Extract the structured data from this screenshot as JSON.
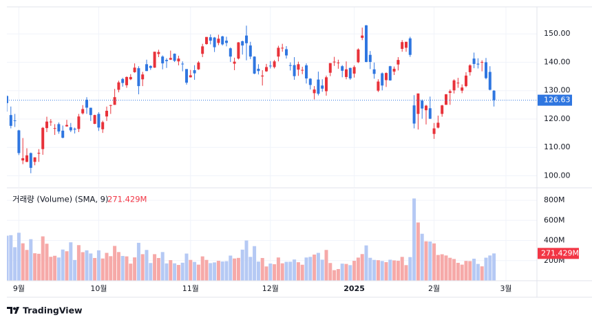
{
  "branding": "TradingView",
  "chart_data": [
    {
      "type": "candlestick",
      "xticks": [
        {
          "value": 3,
          "label": "9월"
        },
        {
          "value": 23,
          "label": "10월"
        },
        {
          "value": 46,
          "label": "11월"
        },
        {
          "value": 66,
          "label": "12월"
        },
        {
          "value": 87,
          "label": "2025"
        },
        {
          "value": 107,
          "label": "2월"
        },
        {
          "value": 125,
          "label": "3월"
        }
      ],
      "ylim": [
        96,
        159.5
      ],
      "yticks": [
        {
          "value": 100,
          "label": "100.00"
        },
        {
          "value": 110,
          "label": "110.00"
        },
        {
          "value": 120,
          "label": "120.00"
        },
        {
          "value": 130,
          "label": "130.00"
        },
        {
          "value": 140,
          "label": "140.00"
        },
        {
          "value": 150,
          "label": "150.00"
        }
      ],
      "up_color": "#e8323a",
      "down_color": "#2f76e0",
      "grid": true,
      "open": [
        128.1,
        121.4,
        119.5,
        116.0,
        105.4,
        104.9,
        108.0,
        104.9,
        107.8,
        109.4,
        116.8,
        119.1,
        116.8,
        118.2,
        115.9,
        117.4,
        117.1,
        116.6,
        116.5,
        122.0,
        126.8,
        123.97,
        118.3,
        121.8,
        116.4,
        120.9,
        124.9,
        124.99,
        130.3,
        134.1,
        131.9,
        134.0,
        136.5,
        137.9,
        133.98,
        139.3,
        138.7,
        138.1,
        142.9,
        142.0,
        140.8,
        140.9,
        143.0,
        140.3,
        139.5,
        137.6,
        134.7,
        137.2,
        137.5,
        142.96,
        146.4,
        148.8,
        148.7,
        146.8,
        149.1,
        147.6,
        144.9,
        139.5,
        141.3,
        147.4,
        149.4,
        145.9,
        141.99,
        137.7,
        135.0,
        136.8,
        138.8,
        138.3,
        142.0,
        145.1,
        144.6,
        138.97,
        139.0,
        137.4,
        137.1,
        138.9,
        134.2,
        129.1,
        133.9,
        131.8,
        129.8,
        136.3,
        140.0,
        139.7,
        138.6,
        134.8,
        138.0,
        136.0,
        140.0,
        148.6,
        153.0,
        142.6,
        137.5,
        129.99,
        136.1,
        133.7,
        138.6,
        136.7,
        139.2,
        144.7,
        145.1,
        148.4,
        124.8,
        121.8,
        126.5,
        123.1,
        123.8,
        114.75,
        116.96,
        121.8,
        125.0,
        129.2,
        130.1,
        132.6,
        130.0,
        131.6,
        136.5,
        141.3,
        139.5,
        140.0,
        140.0,
        136.6,
        129.98
      ],
      "high": [
        128.3,
        124.4,
        121.8,
        116.2,
        113.3,
        109.7,
        108.2,
        106.5,
        109.4,
        117.2,
        120.8,
        119.96,
        118.2,
        118.8,
        117.7,
        119.7,
        118.6,
        116.99,
        121.8,
        124.9,
        127.7,
        124.0,
        121.5,
        122.4,
        119.4,
        124.4,
        125.0,
        130.6,
        133.5,
        134.5,
        135.0,
        135.8,
        139.6,
        138.6,
        136.6,
        140.9,
        138.9,
        143.7,
        144.4,
        142.4,
        141.4,
        144.1,
        143.1,
        142.3,
        140.3,
        137.6,
        137.3,
        138.96,
        140.4,
        146.5,
        148.9,
        149.8,
        148.9,
        149.7,
        149.3,
        149.0,
        145.2,
        141.6,
        147.1,
        147.6,
        152.9,
        147.2,
        142.1,
        139.3,
        137.2,
        139.4,
        140.4,
        140.8,
        145.8,
        146.5,
        145.7,
        139.95,
        141.8,
        140.2,
        138.4,
        139.6,
        134.4,
        131.6,
        136.7,
        134.0,
        135.3,
        139.7,
        141.9,
        140.9,
        139.0,
        140.3,
        138.1,
        138.9,
        144.9,
        152.2,
        153.1,
        143.95,
        139.9,
        134.0,
        136.4,
        136.4,
        138.75,
        138.5,
        141.8,
        147.8,
        147.2,
        148.97,
        128.4,
        129.0,
        126.9,
        125.0,
        127.9,
        118.6,
        121.2,
        125.0,
        128.8,
        130.4,
        134.0,
        134.5,
        132.2,
        136.5,
        139.3,
        143.4,
        141.4,
        140.7,
        141.5,
        138.6,
        130.2
      ],
      "low": [
        122.6,
        116.7,
        117.2,
        107.3,
        104.1,
        104.8,
        100.9,
        103.7,
        104.9,
        107.4,
        115.4,
        117.6,
        114.4,
        114.8,
        113.2,
        117.3,
        115.4,
        114.9,
        115.4,
        121.6,
        121.8,
        119.3,
        118.2,
        115.8,
        115.1,
        119.3,
        121.8,
        124.95,
        129.4,
        131.4,
        131.0,
        133.7,
        136.3,
        128.7,
        131.6,
        136.9,
        137.3,
        138.0,
        141.8,
        137.5,
        138.0,
        140.8,
        140.1,
        138.9,
        136.8,
        132.1,
        134.6,
        133.8,
        137.3,
        141.8,
        146.2,
        146.3,
        143.6,
        146.0,
        145.9,
        145.6,
        140.1,
        137.2,
        140.99,
        142.7,
        140.7,
        141.1,
        135.8,
        135.7,
        131.8,
        136.6,
        137.8,
        137.8,
        140.3,
        143.7,
        141.3,
        137.1,
        133.8,
        135.2,
        135.8,
        132.5,
        130.4,
        126.9,
        128.3,
        129.6,
        128.2,
        135.1,
        138.7,
        137.7,
        134.7,
        134.0,
        133.8,
        134.6,
        139.7,
        147.8,
        140.0,
        137.6,
        134.2,
        129.5,
        130.1,
        131.3,
        133.5,
        135.5,
        137.1,
        143.7,
        143.7,
        141.9,
        116.7,
        116.3,
        120.1,
        118.1,
        120.0,
        113.0,
        116.7,
        120.8,
        125.0,
        125.0,
        129.0,
        131.0,
        129.1,
        131.2,
        135.3,
        137.9,
        137.8,
        136.8,
        134.0,
        130.1,
        124.4
      ],
      "close": [
        125.6,
        117.6,
        119.4,
        108.0,
        106.2,
        107.2,
        102.8,
        106.5,
        108.1,
        116.9,
        119.1,
        119.1,
        116.8,
        115.6,
        113.4,
        117.9,
        116.0,
        116.3,
        120.9,
        123.5,
        124.0,
        121.4,
        121.4,
        117.0,
        118.9,
        122.9,
        124.9,
        127.7,
        132.9,
        132.7,
        134.8,
        134.8,
        138.1,
        131.6,
        135.7,
        136.9,
        138.0,
        143.7,
        143.6,
        139.6,
        140.4,
        141.5,
        140.5,
        141.3,
        139.3,
        132.8,
        135.4,
        136.1,
        139.9,
        145.6,
        148.9,
        147.6,
        145.3,
        148.3,
        146.3,
        146.8,
        142.0,
        140.2,
        147.0,
        145.9,
        146.7,
        142.0,
        136.0,
        136.9,
        135.3,
        138.3,
        138.6,
        140.3,
        145.1,
        145.1,
        142.4,
        138.8,
        135.1,
        139.3,
        137.3,
        134.3,
        132.0,
        130.4,
        128.9,
        130.7,
        134.7,
        139.7,
        140.2,
        139.9,
        137.0,
        137.5,
        134.3,
        138.3,
        144.5,
        149.4,
        140.1,
        140.1,
        135.9,
        133.2,
        131.8,
        136.2,
        133.6,
        137.7,
        140.8,
        147.1,
        147.2,
        142.6,
        118.4,
        129.0,
        123.7,
        124.7,
        120.1,
        116.7,
        118.7,
        124.8,
        128.7,
        129.8,
        133.6,
        132.8,
        131.1,
        135.3,
        138.9,
        139.4,
        139.2,
        140.1,
        134.4,
        130.3,
        126.63
      ]
    },
    {
      "type": "bar",
      "title": "거래량 (Volume) (SMA, 9)",
      "ylim": [
        0,
        910
      ],
      "yticks": [
        {
          "value": 200,
          "label": "200M"
        },
        {
          "value": 400,
          "label": "400M"
        },
        {
          "value": 600,
          "label": "600M"
        },
        {
          "value": 800,
          "label": "800M"
        }
      ],
      "up_color": "#f6a9a8",
      "down_color": "#b5c9f4",
      "label_color": "#f23645",
      "values": [
        448,
        453,
        333,
        477,
        372,
        306,
        413,
        273,
        268,
        441,
        368,
        238,
        248,
        231,
        310,
        293,
        382,
        206,
        354,
        284,
        302,
        271,
        226,
        302,
        221,
        277,
        244,
        346,
        285,
        246,
        242,
        170,
        232,
        377,
        264,
        306,
        176,
        264,
        226,
        285,
        172,
        205,
        173,
        157,
        179,
        270,
        207,
        187,
        160,
        242,
        207,
        175,
        182,
        198,
        191,
        194,
        250,
        221,
        227,
        309,
        400,
        237,
        344,
        190,
        226,
        142,
        171,
        164,
        231,
        173,
        188,
        189,
        211,
        184,
        159,
        231,
        237,
        260,
        277,
        209,
        306,
        176,
        105,
        116,
        170,
        167,
        155,
        198,
        230,
        265,
        351,
        228,
        207,
        204,
        196,
        185,
        209,
        202,
        198,
        237,
        155,
        235,
        818,
        579,
        467,
        392,
        390,
        371,
        256,
        263,
        251,
        228,
        216,
        178,
        160,
        197,
        195,
        219,
        167,
        143,
        229,
        251,
        271.429
      ],
      "value_labels": [
        null,
        null,
        null,
        null,
        null,
        null,
        null,
        null,
        null,
        null,
        null,
        null,
        null,
        null,
        null,
        null,
        null,
        null,
        null,
        null,
        null,
        null,
        null,
        null,
        null,
        null,
        null,
        null,
        null,
        null,
        null,
        null,
        null,
        null,
        null,
        null,
        null,
        null,
        null,
        null,
        null,
        null,
        null,
        null,
        null,
        null,
        null,
        null,
        null,
        null,
        null,
        null,
        null,
        null,
        null,
        null,
        null,
        null,
        null,
        null,
        null,
        null,
        null,
        null,
        null,
        null,
        null,
        null,
        null,
        null,
        null,
        null,
        null,
        null,
        null,
        null,
        null,
        null,
        null,
        null,
        null,
        null,
        null,
        null,
        null,
        null,
        null,
        null,
        null,
        null,
        null,
        null,
        null,
        null,
        null,
        null,
        null,
        null,
        null,
        null,
        null,
        null,
        null,
        null,
        null,
        null,
        null,
        null,
        null,
        null,
        null,
        null,
        null,
        null,
        null,
        null,
        null,
        null,
        null,
        null,
        null,
        null,
        "271.429M"
      ]
    }
  ]
}
